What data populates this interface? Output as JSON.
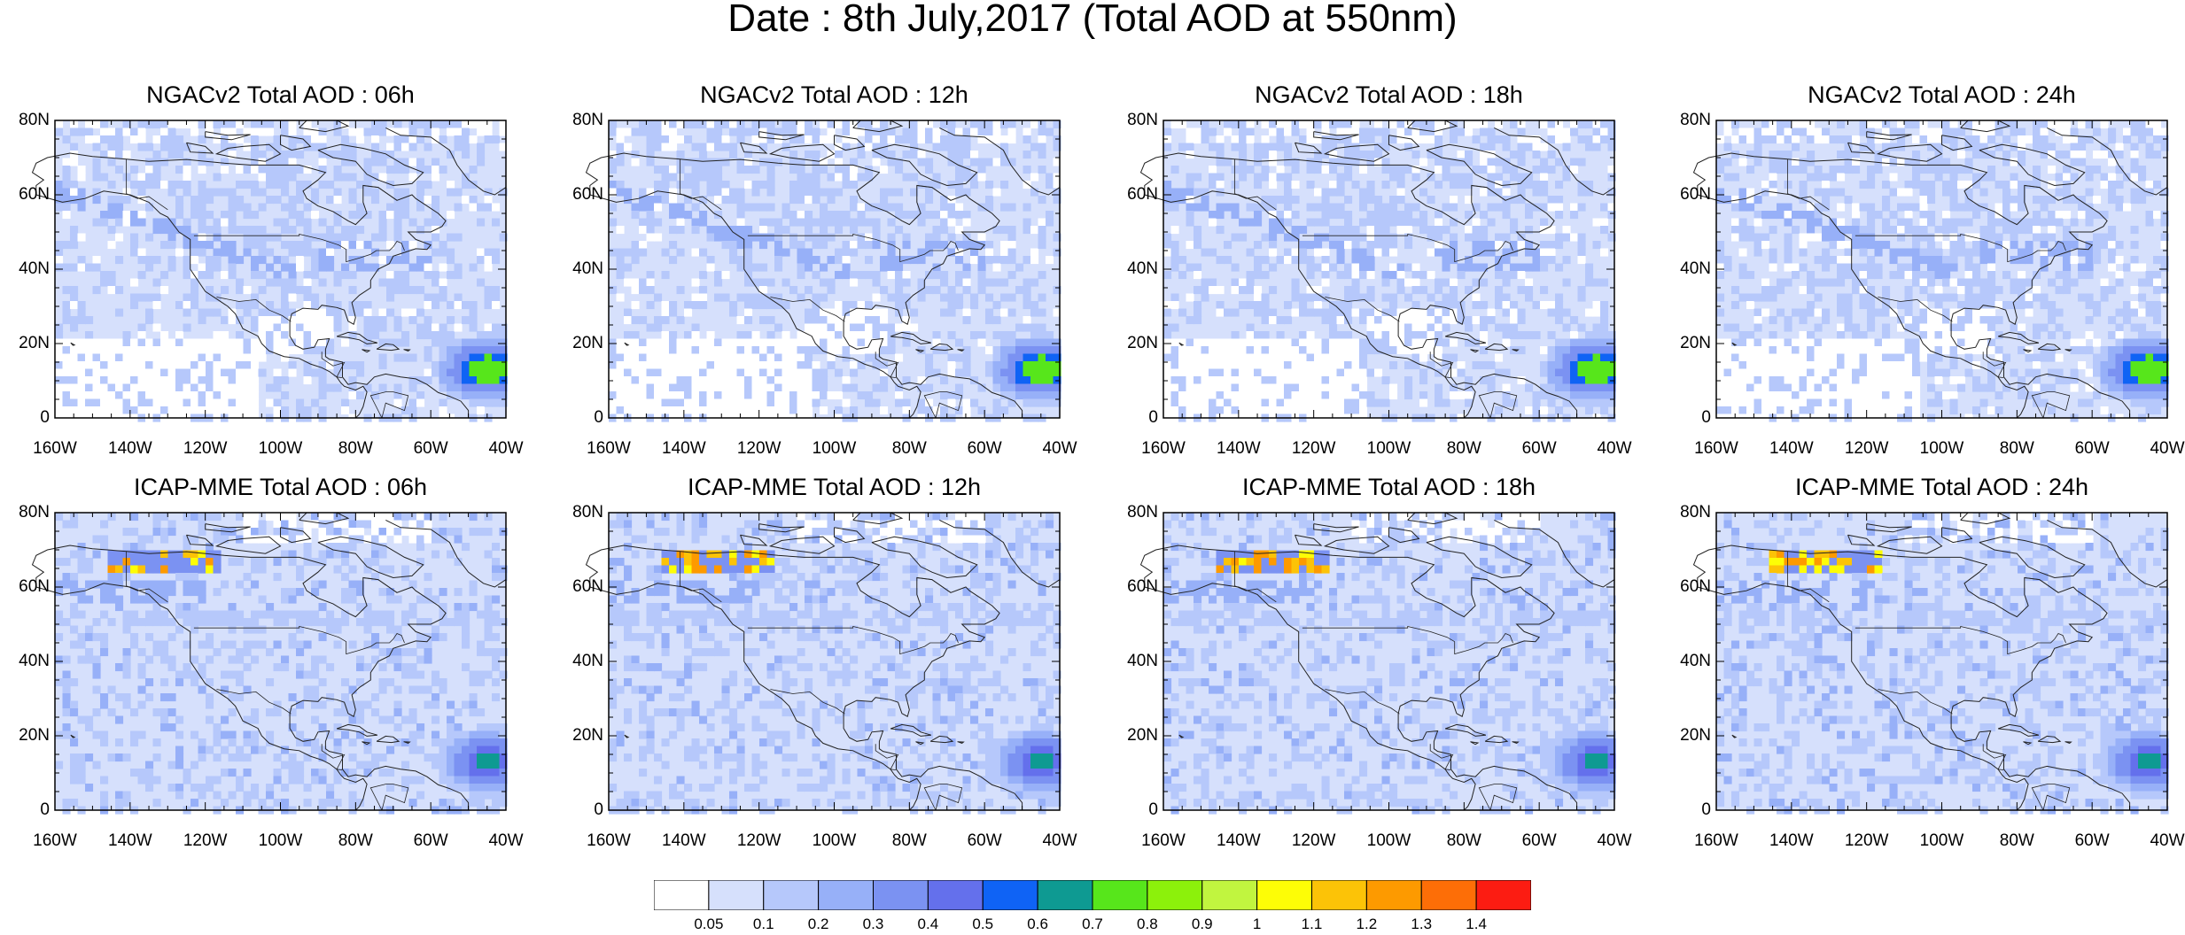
{
  "title": "Date : 8th July,2017 (Total AOD at 550nm)",
  "panels": [
    {
      "title": "NGACv2 Total AOD : 06h",
      "model": "NGACv2",
      "lead": "06h"
    },
    {
      "title": "NGACv2 Total AOD : 12h",
      "model": "NGACv2",
      "lead": "12h"
    },
    {
      "title": "NGACv2 Total AOD : 18h",
      "model": "NGACv2",
      "lead": "18h"
    },
    {
      "title": "NGACv2 Total AOD : 24h",
      "model": "NGACv2",
      "lead": "24h"
    },
    {
      "title": "ICAP-MME Total AOD : 06h",
      "model": "ICAP-MME",
      "lead": "06h"
    },
    {
      "title": "ICAP-MME Total AOD : 12h",
      "model": "ICAP-MME",
      "lead": "12h"
    },
    {
      "title": "ICAP-MME Total AOD : 18h",
      "model": "ICAP-MME",
      "lead": "18h"
    },
    {
      "title": "ICAP-MME Total AOD : 24h",
      "model": "ICAP-MME",
      "lead": "24h"
    }
  ],
  "lat_ticks": [
    "80N",
    "60N",
    "40N",
    "20N",
    "0"
  ],
  "lon_ticks": [
    "160W",
    "140W",
    "120W",
    "100W",
    "80W",
    "60W",
    "40W"
  ],
  "colorbar": {
    "labels": [
      "0.05",
      "0.1",
      "0.2",
      "0.3",
      "0.4",
      "0.5",
      "0.6",
      "0.7",
      "0.8",
      "0.9",
      "1",
      "1.1",
      "1.2",
      "1.3",
      "1.4"
    ],
    "colors": [
      "#ffffff",
      "#d6e0fc",
      "#b6c8fb",
      "#97b0f8",
      "#7b92f2",
      "#6470ec",
      "#0f63f5",
      "#0e9a92",
      "#57e61b",
      "#8cf10b",
      "#c1f53f",
      "#fdfd06",
      "#fcc307",
      "#fd9a00",
      "#fd6e07",
      "#fc1c12"
    ]
  }
}
